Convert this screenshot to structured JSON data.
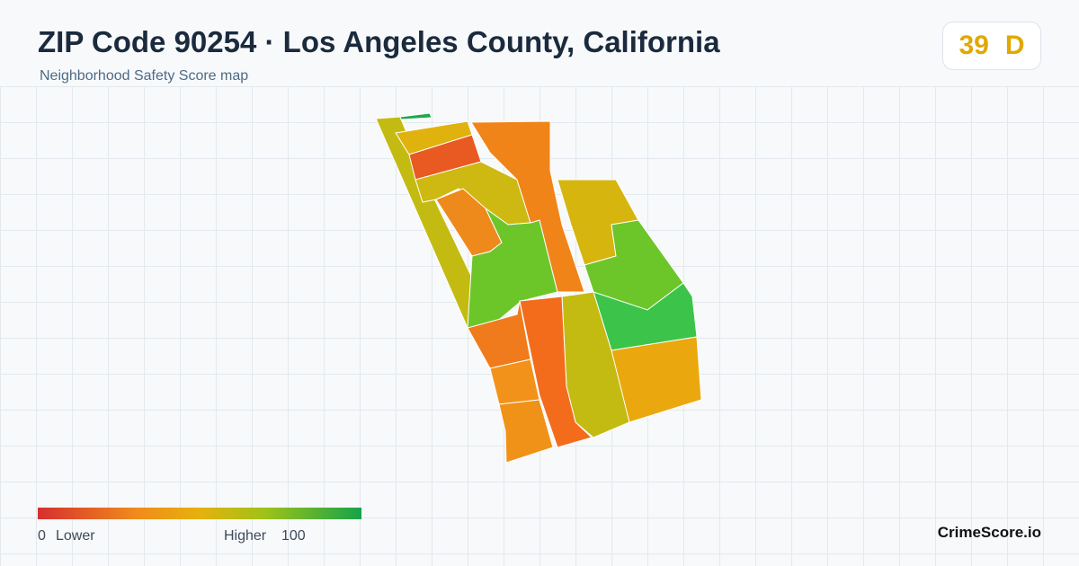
{
  "header": {
    "title": "ZIP Code 90254 · Los Angeles County, California",
    "subtitle": "Neighborhood Safety Score map"
  },
  "score": {
    "value": 39,
    "grade": "D"
  },
  "legend": {
    "min": 0,
    "min_label": "Lower",
    "max_label": "Higher",
    "max": 100
  },
  "brand": "CrimeScore.io"
}
